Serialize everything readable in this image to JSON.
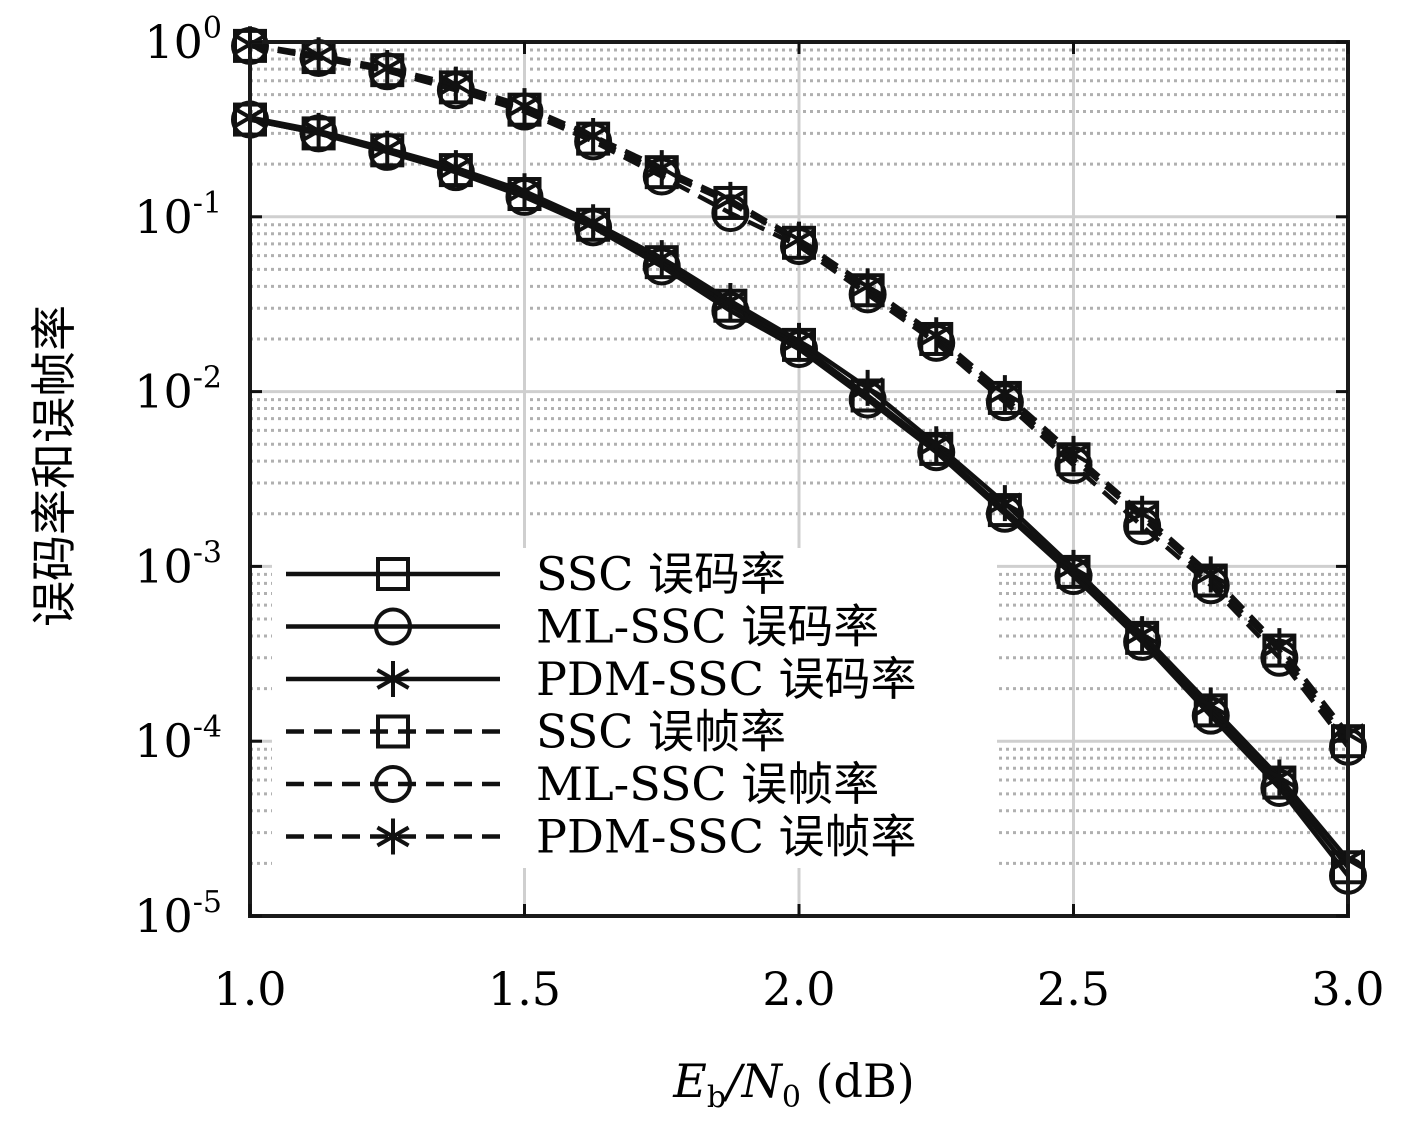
{
  "chart_data": {
    "type": "line",
    "xlabel": "E_b/N_0 (dB)",
    "xlabel_parts": {
      "sym": "E",
      "sub1": "b",
      "slash": "/N",
      "sub2": "0",
      "unit": " (dB)"
    },
    "ylabel": "误码率和误帧率",
    "xlim": [
      1.0,
      3.0
    ],
    "ylim": [
      1e-05,
      1
    ],
    "y_scale": "log",
    "grid": true,
    "x_ticks": [
      "1.0",
      "1.5",
      "2.0",
      "2.5",
      "3.0"
    ],
    "y_ticks": [
      {
        "base": "10",
        "exp": "0"
      },
      {
        "base": "10",
        "exp": "-1"
      },
      {
        "base": "10",
        "exp": "-2"
      },
      {
        "base": "10",
        "exp": "-3"
      },
      {
        "base": "10",
        "exp": "-4"
      },
      {
        "base": "10",
        "exp": "-5"
      }
    ],
    "legend_position": "bottom-left",
    "x": [
      1.0,
      1.125,
      1.25,
      1.375,
      1.5,
      1.625,
      1.75,
      1.875,
      2.0,
      2.125,
      2.25,
      2.375,
      2.5,
      2.625,
      2.75,
      2.875,
      3.0
    ],
    "series": [
      {
        "name": "SSC 误码率",
        "line": "solid",
        "marker": "square",
        "values": [
          0.36,
          0.3,
          0.24,
          0.185,
          0.135,
          0.09,
          0.055,
          0.031,
          0.0185,
          0.0095,
          0.0047,
          0.0021,
          0.00093,
          0.00039,
          0.00015,
          5.8e-05,
          1.9e-05
        ]
      },
      {
        "name": "ML-SSC 误码率",
        "line": "solid",
        "marker": "circle",
        "values": [
          0.36,
          0.3,
          0.235,
          0.18,
          0.13,
          0.087,
          0.052,
          0.029,
          0.0175,
          0.009,
          0.0045,
          0.002,
          0.00088,
          0.00037,
          0.00014,
          5.4e-05,
          1.7e-05
        ]
      },
      {
        "name": "PDM-SSC 误码率",
        "line": "solid",
        "marker": "star",
        "values": [
          0.37,
          0.31,
          0.245,
          0.19,
          0.14,
          0.093,
          0.058,
          0.033,
          0.0195,
          0.0105,
          0.005,
          0.0023,
          0.00098,
          0.00041,
          0.00016,
          6.2e-05,
          2.1e-05
        ]
      },
      {
        "name": "SSC 误帧率",
        "line": "dashed",
        "marker": "square",
        "values": [
          0.95,
          0.82,
          0.69,
          0.55,
          0.41,
          0.28,
          0.18,
          0.12,
          0.071,
          0.038,
          0.02,
          0.0092,
          0.0041,
          0.0019,
          0.00083,
          0.00033,
          0.0001
        ]
      },
      {
        "name": "ML-SSC 误帧率",
        "line": "dashed",
        "marker": "circle",
        "values": [
          0.95,
          0.81,
          0.68,
          0.53,
          0.4,
          0.27,
          0.17,
          0.105,
          0.068,
          0.036,
          0.019,
          0.0087,
          0.0038,
          0.0017,
          0.00078,
          0.0003,
          9.3e-05
        ]
      },
      {
        "name": "PDM-SSC 误帧率",
        "line": "dashed",
        "marker": "star",
        "values": [
          0.97,
          0.84,
          0.71,
          0.57,
          0.43,
          0.29,
          0.19,
          0.125,
          0.074,
          0.04,
          0.021,
          0.0098,
          0.0044,
          0.002,
          0.0009,
          0.00035,
          0.00011
        ]
      }
    ]
  }
}
